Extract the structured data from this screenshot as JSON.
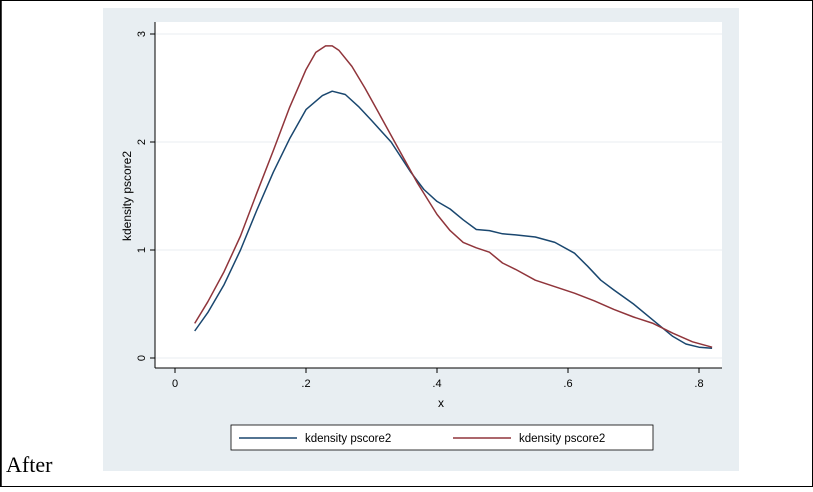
{
  "cell": {
    "label": "After"
  },
  "colors": {
    "outer_bg": "#e8eef2",
    "plot_bg": "#ffffff",
    "grid": "#e9eef1",
    "axis": "#000000",
    "series1": "#1a476f",
    "series2": "#90353b"
  },
  "chart_data": {
    "type": "line",
    "title": "",
    "xlabel": "x",
    "ylabel": "kdensity pscore2",
    "xlim": [
      0,
      0.82
    ],
    "ylim": [
      0,
      3
    ],
    "xticks": [
      0,
      0.2,
      0.4,
      0.6,
      0.8
    ],
    "xtick_labels": [
      "0",
      ".2",
      ".4",
      ".6",
      ".8"
    ],
    "yticks": [
      0,
      1,
      2,
      3
    ],
    "ytick_labels": [
      "0",
      "1",
      "2",
      "3"
    ],
    "grid": true,
    "legend_position": "bottom",
    "series": [
      {
        "name": "kdensity pscore2",
        "color": "#1a476f",
        "x": [
          0.03,
          0.05,
          0.075,
          0.1,
          0.125,
          0.15,
          0.175,
          0.2,
          0.225,
          0.24,
          0.26,
          0.28,
          0.3,
          0.33,
          0.36,
          0.38,
          0.4,
          0.42,
          0.44,
          0.46,
          0.48,
          0.5,
          0.52,
          0.55,
          0.58,
          0.61,
          0.63,
          0.65,
          0.67,
          0.7,
          0.73,
          0.76,
          0.78,
          0.8,
          0.82
        ],
        "y": [
          0.25,
          0.42,
          0.68,
          1.0,
          1.37,
          1.72,
          2.03,
          2.3,
          2.43,
          2.47,
          2.44,
          2.33,
          2.2,
          2.0,
          1.72,
          1.56,
          1.45,
          1.38,
          1.28,
          1.19,
          1.18,
          1.15,
          1.14,
          1.12,
          1.07,
          0.97,
          0.85,
          0.72,
          0.63,
          0.5,
          0.35,
          0.2,
          0.13,
          0.1,
          0.09
        ]
      },
      {
        "name": "kdensity pscore2",
        "color": "#90353b",
        "x": [
          0.03,
          0.05,
          0.075,
          0.1,
          0.125,
          0.15,
          0.175,
          0.2,
          0.215,
          0.23,
          0.24,
          0.25,
          0.27,
          0.29,
          0.31,
          0.34,
          0.37,
          0.4,
          0.42,
          0.44,
          0.46,
          0.48,
          0.5,
          0.52,
          0.55,
          0.58,
          0.61,
          0.64,
          0.67,
          0.7,
          0.73,
          0.76,
          0.79,
          0.82
        ],
        "y": [
          0.32,
          0.52,
          0.8,
          1.13,
          1.53,
          1.92,
          2.32,
          2.67,
          2.83,
          2.89,
          2.89,
          2.85,
          2.7,
          2.5,
          2.28,
          1.95,
          1.62,
          1.33,
          1.18,
          1.07,
          1.02,
          0.98,
          0.88,
          0.82,
          0.72,
          0.66,
          0.6,
          0.53,
          0.45,
          0.38,
          0.32,
          0.23,
          0.15,
          0.1
        ]
      }
    ]
  }
}
